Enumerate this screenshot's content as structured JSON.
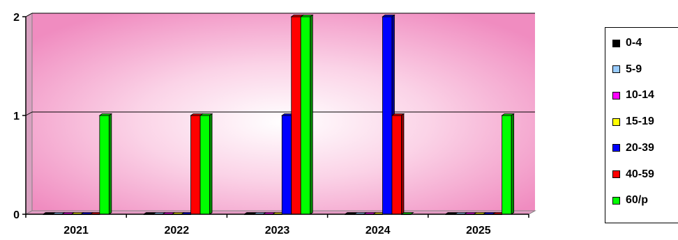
{
  "chart_data": {
    "type": "bar",
    "categories": [
      "2021",
      "2022",
      "2023",
      "2024",
      "2025"
    ],
    "series": [
      {
        "name": "0-4",
        "color": "#000000",
        "values": [
          0,
          0,
          0,
          0,
          0
        ]
      },
      {
        "name": "5-9",
        "color": "#99ccff",
        "values": [
          0,
          0,
          0,
          0,
          0
        ]
      },
      {
        "name": "10-14",
        "color": "#ff00ff",
        "values": [
          0,
          0,
          0,
          0,
          0
        ]
      },
      {
        "name": "15-19",
        "color": "#ffff00",
        "values": [
          0,
          0,
          0,
          0,
          0
        ]
      },
      {
        "name": "20-39",
        "color": "#0000ff",
        "values": [
          0,
          0,
          1,
          2,
          0
        ]
      },
      {
        "name": "40-59",
        "color": "#ff0000",
        "values": [
          0,
          1,
          2,
          1,
          0
        ]
      },
      {
        "name": "60/p",
        "color": "#00ff00",
        "values": [
          1,
          1,
          2,
          0,
          1
        ]
      }
    ],
    "ylim": [
      0,
      2
    ],
    "yticks": [
      "0",
      "1",
      "2"
    ],
    "grid": true,
    "legend_position": "right",
    "background": "pink gradient",
    "three_d": true
  }
}
